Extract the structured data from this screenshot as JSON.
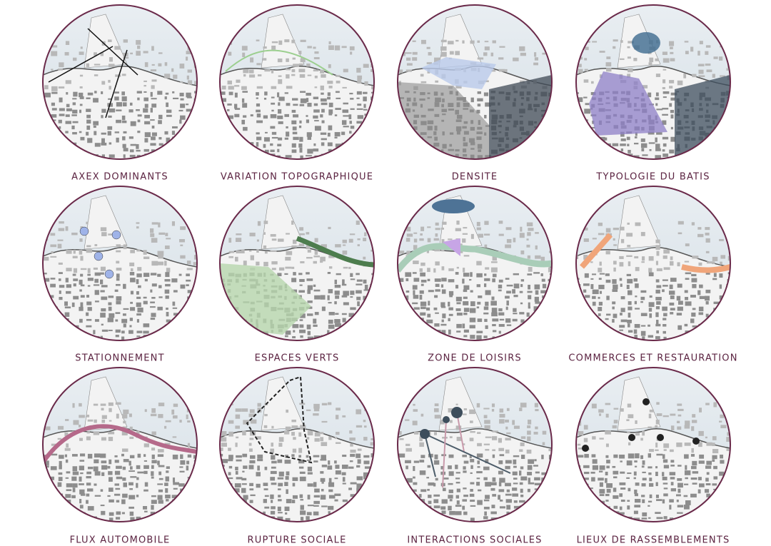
{
  "panels": [
    {
      "label": "AXEX DOMINANTS"
    },
    {
      "label": "VARIATION TOPOGRAPHIQUE"
    },
    {
      "label": "DENSITE"
    },
    {
      "label": "TYPOLOGIE DU BATIS"
    },
    {
      "label": "STATIONNEMENT"
    },
    {
      "label": "ESPACES VERTS"
    },
    {
      "label": "ZONE DE LOISIRS"
    },
    {
      "label": "COMMERCES ET RESTAURATION"
    },
    {
      "label": "FLUX AUTOMOBILE"
    },
    {
      "label": "RUPTURE SOCIALE"
    },
    {
      "label": "INTERACTIONS SOCIALES"
    },
    {
      "label": "LIEUX DE RASSEMBLEMENTS"
    }
  ]
}
